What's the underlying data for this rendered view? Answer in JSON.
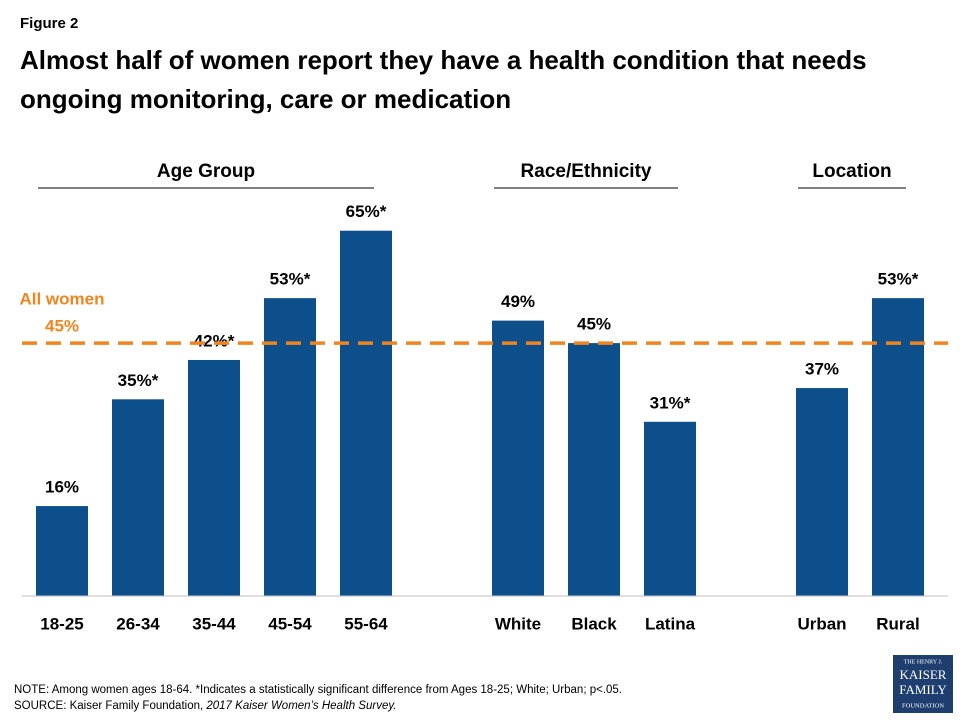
{
  "figure_label": "Figure 2",
  "chart_data": {
    "type": "bar",
    "title": "Almost half of women report they have a health condition that needs ongoing monitoring, care or medication",
    "categories": [
      "18-25",
      "26-34",
      "35-44",
      "45-54",
      "55-64",
      null,
      "White",
      "Black",
      "Latina",
      null,
      "Urban",
      "Rural"
    ],
    "values": [
      16,
      35,
      42,
      53,
      65,
      null,
      49,
      45,
      31,
      null,
      37,
      53
    ],
    "value_labels": [
      "16%",
      "35%*",
      "42%*",
      "53%*",
      "65%*",
      null,
      "49%",
      "45%",
      "31%*",
      null,
      "37%",
      "53%*"
    ],
    "groups": [
      "Age Group",
      "Race/Ethnicity",
      "Location"
    ],
    "color": "#0d4f8b",
    "ylim": [
      0,
      100
    ],
    "reference_line": {
      "label": "All women",
      "value": 45,
      "value_label": "45%",
      "color": "#f0851f"
    }
  },
  "note": "NOTE: Among women ages 18-64. *Indicates a statistically significant difference from Ages 18-25; White; Urban; p<.05.",
  "source": {
    "text": "SOURCE: Kaiser Family Foundation, ",
    "title": "2017 Kaiser Women’s Health Survey."
  },
  "logo": [
    "THE HENRY J.",
    "KAISER",
    "FAMILY",
    "FOUNDATION"
  ]
}
